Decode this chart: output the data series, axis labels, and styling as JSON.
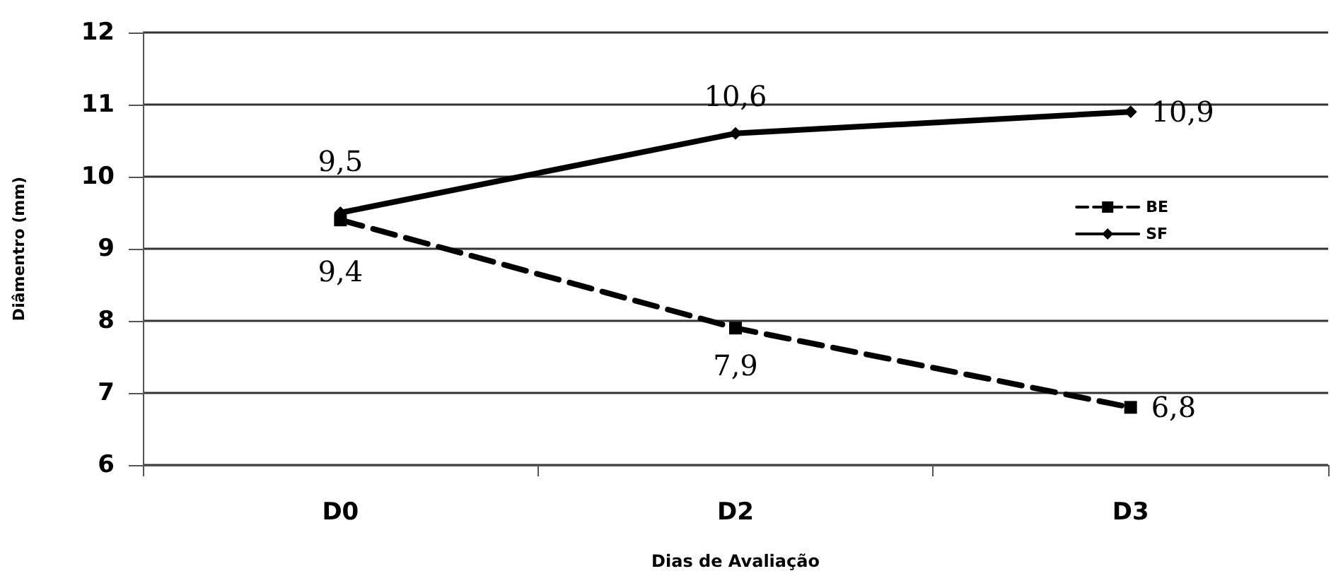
{
  "chart_data": {
    "type": "line",
    "xlabel": "Dias de Avaliação",
    "ylabel": "Diâmentro (mm)",
    "categories": [
      "D0",
      "D2",
      "D3"
    ],
    "series": [
      {
        "name": "BE",
        "color": "#000000",
        "values": [
          9.4,
          7.9,
          6.8
        ],
        "value_labels": [
          "9,4",
          "7,9",
          "6,8"
        ],
        "line_style": "dashed",
        "marker": "square"
      },
      {
        "name": "SF",
        "color": "#000000",
        "values": [
          9.5,
          10.6,
          10.9
        ],
        "value_labels": [
          "9,5",
          "10,6",
          "10,9"
        ],
        "line_style": "solid",
        "marker": "diamond"
      }
    ],
    "ylim": [
      6,
      12
    ],
    "yticks": [
      6,
      7,
      8,
      9,
      10,
      11,
      12
    ],
    "grid": "y",
    "legend": "right"
  }
}
